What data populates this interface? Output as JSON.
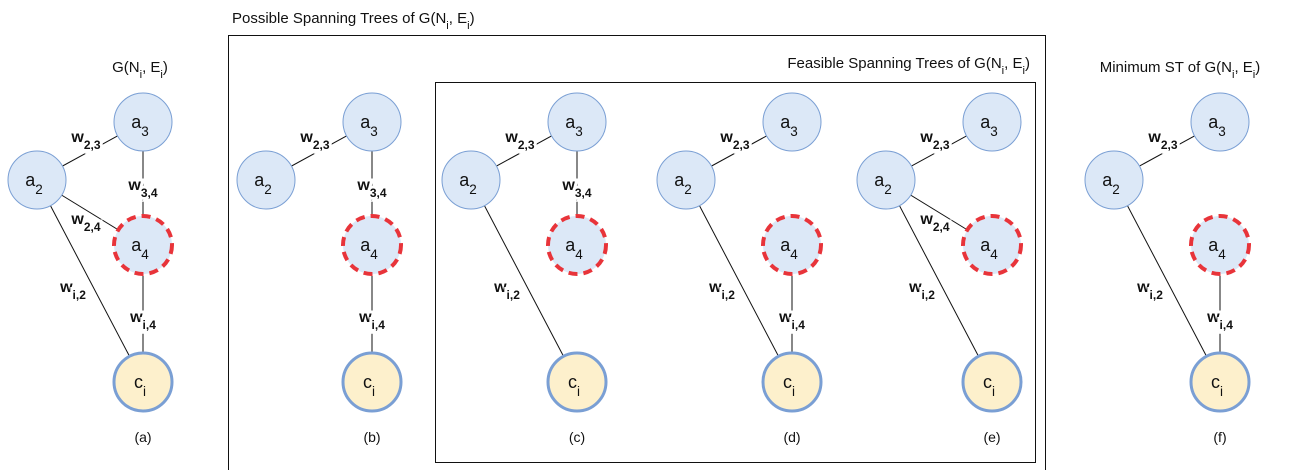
{
  "titles": {
    "possible": [
      "Possible Spanning Trees of G(N",
      "i",
      ", E",
      "i",
      ")"
    ],
    "feasible": [
      "Feasible Spanning Trees of G(N",
      "i",
      ", E",
      "i",
      ")"
    ],
    "graph": [
      "G(N",
      "i",
      ", E",
      "i",
      ")"
    ],
    "minimum": [
      "Minimum ST of G(N",
      "i",
      ", E",
      "i",
      ")"
    ]
  },
  "panels": [
    {
      "caption": "(a)",
      "nodes": [
        {
          "base": "a",
          "sub": "2"
        },
        {
          "base": "a",
          "sub": "3"
        },
        {
          "base": "a",
          "sub": "4"
        },
        {
          "base": "c",
          "sub": "i"
        }
      ],
      "edges": [
        {
          "base": "w",
          "sub": "2,3"
        },
        {
          "base": "w",
          "sub": "3,4"
        },
        {
          "base": "w",
          "sub": "2,4"
        },
        {
          "base": "w",
          "sub": "i,2"
        },
        {
          "base": "w",
          "sub": "i,4"
        }
      ]
    },
    {
      "caption": "(b)",
      "nodes": [
        {
          "base": "a",
          "sub": "2"
        },
        {
          "base": "a",
          "sub": "3"
        },
        {
          "base": "a",
          "sub": "4"
        },
        {
          "base": "c",
          "sub": "i"
        }
      ],
      "edges": [
        {
          "base": "w",
          "sub": "2,3"
        },
        {
          "base": "w",
          "sub": "3,4"
        },
        {
          "base": "w",
          "sub": "i,4"
        }
      ]
    },
    {
      "caption": "(c)",
      "nodes": [
        {
          "base": "a",
          "sub": "2"
        },
        {
          "base": "a",
          "sub": "3"
        },
        {
          "base": "a",
          "sub": "4"
        },
        {
          "base": "c",
          "sub": "i"
        }
      ],
      "edges": [
        {
          "base": "w",
          "sub": "2,3"
        },
        {
          "base": "w",
          "sub": "3,4"
        },
        {
          "base": "w",
          "sub": "i,2"
        }
      ]
    },
    {
      "caption": "(d)",
      "nodes": [
        {
          "base": "a",
          "sub": "2"
        },
        {
          "base": "a",
          "sub": "3"
        },
        {
          "base": "a",
          "sub": "4"
        },
        {
          "base": "c",
          "sub": "i"
        }
      ],
      "edges": [
        {
          "base": "w",
          "sub": "2,3"
        },
        {
          "base": "w",
          "sub": "i,2"
        },
        {
          "base": "w",
          "sub": "i,4"
        }
      ]
    },
    {
      "caption": "(e)",
      "nodes": [
        {
          "base": "a",
          "sub": "2"
        },
        {
          "base": "a",
          "sub": "3"
        },
        {
          "base": "a",
          "sub": "4"
        },
        {
          "base": "c",
          "sub": "i"
        }
      ],
      "edges": [
        {
          "base": "w",
          "sub": "2,3"
        },
        {
          "base": "w",
          "sub": "2,4"
        },
        {
          "base": "w",
          "sub": "i,2"
        }
      ]
    },
    {
      "caption": "(f)",
      "nodes": [
        {
          "base": "a",
          "sub": "2"
        },
        {
          "base": "a",
          "sub": "3"
        },
        {
          "base": "a",
          "sub": "4"
        },
        {
          "base": "c",
          "sub": "i"
        }
      ],
      "edges": [
        {
          "base": "w",
          "sub": "2,3"
        },
        {
          "base": "w",
          "sub": "i,2"
        },
        {
          "base": "w",
          "sub": "i,4"
        }
      ]
    }
  ]
}
